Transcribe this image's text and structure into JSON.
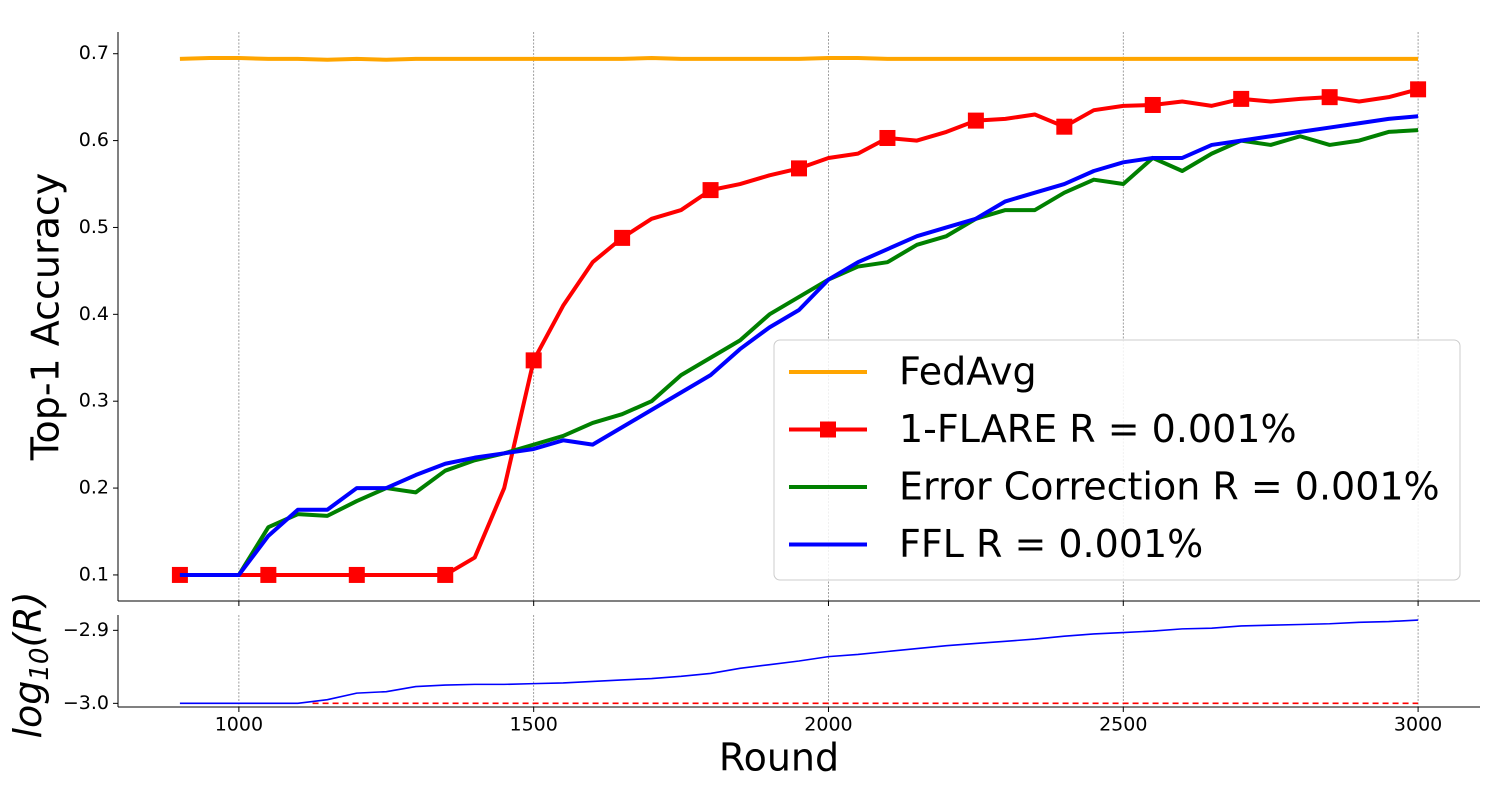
{
  "chart_data": [
    {
      "type": "line",
      "ylabel": "Top-1 Accuracy",
      "xlim": [
        795,
        3105
      ],
      "xticks": [
        1000,
        1500,
        2000,
        2500,
        3000
      ],
      "xticklabels": false,
      "grid": "x",
      "ylim": [
        0.07,
        0.725
      ],
      "yticks": [
        0.1,
        0.2,
        0.3,
        0.4,
        0.5,
        0.6,
        0.7
      ],
      "legend": "lower right",
      "x": [
        900,
        950,
        1000,
        1050,
        1100,
        1150,
        1200,
        1250,
        1300,
        1350,
        1400,
        1450,
        1500,
        1550,
        1600,
        1650,
        1700,
        1750,
        1800,
        1850,
        1900,
        1950,
        2000,
        2050,
        2100,
        2150,
        2200,
        2250,
        2300,
        2350,
        2400,
        2450,
        2500,
        2550,
        2600,
        2650,
        2700,
        2750,
        2800,
        2850,
        2900,
        2950,
        3000
      ],
      "series": [
        {
          "name": "FedAvg",
          "color": "#ffa500",
          "values": [
            0.694,
            0.695,
            0.695,
            0.694,
            0.694,
            0.693,
            0.694,
            0.693,
            0.694,
            0.694,
            0.694,
            0.694,
            0.694,
            0.694,
            0.694,
            0.694,
            0.695,
            0.694,
            0.694,
            0.694,
            0.694,
            0.694,
            0.695,
            0.695,
            0.694,
            0.694,
            0.694,
            0.694,
            0.694,
            0.694,
            0.694,
            0.694,
            0.694,
            0.694,
            0.694,
            0.694,
            0.694,
            0.694,
            0.694,
            0.694,
            0.694,
            0.694,
            0.694
          ]
        },
        {
          "name": "1-FLARE R = 0.001%",
          "color": "#ff0000",
          "marker": "s",
          "markevery": 3,
          "values": [
            0.1,
            0.1,
            0.1,
            0.1,
            0.1,
            0.1,
            0.1,
            0.1,
            0.1,
            0.1,
            0.12,
            0.2,
            0.347,
            0.41,
            0.46,
            0.488,
            0.51,
            0.52,
            0.543,
            0.55,
            0.56,
            0.568,
            0.58,
            0.585,
            0.603,
            0.6,
            0.61,
            0.623,
            0.625,
            0.63,
            0.616,
            0.635,
            0.64,
            0.641,
            0.645,
            0.64,
            0.648,
            0.645,
            0.648,
            0.65,
            0.645,
            0.65,
            0.659
          ]
        },
        {
          "name": "Error Correction R = 0.001%",
          "color": "#008000",
          "values": [
            0.1,
            0.1,
            0.1,
            0.155,
            0.17,
            0.168,
            0.185,
            0.2,
            0.195,
            0.22,
            0.232,
            0.24,
            0.25,
            0.26,
            0.275,
            0.285,
            0.3,
            0.33,
            0.35,
            0.37,
            0.4,
            0.42,
            0.44,
            0.455,
            0.46,
            0.48,
            0.49,
            0.51,
            0.52,
            0.52,
            0.54,
            0.555,
            0.55,
            0.58,
            0.565,
            0.585,
            0.6,
            0.595,
            0.605,
            0.595,
            0.6,
            0.61,
            0.612
          ]
        },
        {
          "name": "FFL R = 0.001%",
          "color": "#0000ff",
          "values": [
            0.1,
            0.1,
            0.1,
            0.145,
            0.175,
            0.175,
            0.2,
            0.2,
            0.215,
            0.228,
            0.235,
            0.24,
            0.245,
            0.255,
            0.25,
            0.27,
            0.29,
            0.31,
            0.33,
            0.36,
            0.385,
            0.405,
            0.44,
            0.46,
            0.475,
            0.49,
            0.5,
            0.51,
            0.53,
            0.54,
            0.55,
            0.565,
            0.575,
            0.58,
            0.58,
            0.595,
            0.6,
            0.605,
            0.61,
            0.615,
            0.62,
            0.625,
            0.628
          ]
        }
      ]
    },
    {
      "type": "line",
      "ylabel": {
        "text": "log",
        "sub": "10",
        "tail": "(R)"
      },
      "xlabel": "Round",
      "xlim": [
        795,
        3105
      ],
      "xticks": [
        1000,
        1500,
        2000,
        2500,
        3000
      ],
      "grid": "x",
      "ylim": [
        -3.005,
        -2.879
      ],
      "yticks": [
        {
          "value": -3.0,
          "label": "−3.0"
        },
        {
          "value": -2.9,
          "label": "−2.9"
        }
      ],
      "series": [
        {
          "color": "#0000ff",
          "x": [
            900,
            950,
            1000,
            1050,
            1100,
            1150,
            1200,
            1250,
            1300,
            1350,
            1400,
            1450,
            1500,
            1550,
            1600,
            1650,
            1700,
            1750,
            1800,
            1850,
            1900,
            1950,
            2000,
            2050,
            2100,
            2150,
            2200,
            2250,
            2300,
            2350,
            2400,
            2450,
            2500,
            2550,
            2600,
            2650,
            2700,
            2750,
            2800,
            2850,
            2900,
            2950,
            3000
          ],
          "values": [
            -3.0,
            -3.0,
            -3.0,
            -3.0,
            -3.0,
            -2.995,
            -2.986,
            -2.984,
            -2.977,
            -2.975,
            -2.974,
            -2.974,
            -2.973,
            -2.972,
            -2.97,
            -2.968,
            -2.966,
            -2.963,
            -2.959,
            -2.952,
            -2.947,
            -2.942,
            -2.936,
            -2.933,
            -2.929,
            -2.925,
            -2.921,
            -2.918,
            -2.915,
            -2.912,
            -2.908,
            -2.905,
            -2.903,
            -2.901,
            -2.898,
            -2.897,
            -2.894,
            -2.893,
            -2.892,
            -2.891,
            -2.889,
            -2.888,
            -2.886
          ]
        },
        {
          "color": "#ff0000",
          "dashed": true,
          "x": [
            1125,
            3000
          ],
          "values": [
            -3.0,
            -3.0
          ]
        }
      ]
    }
  ]
}
